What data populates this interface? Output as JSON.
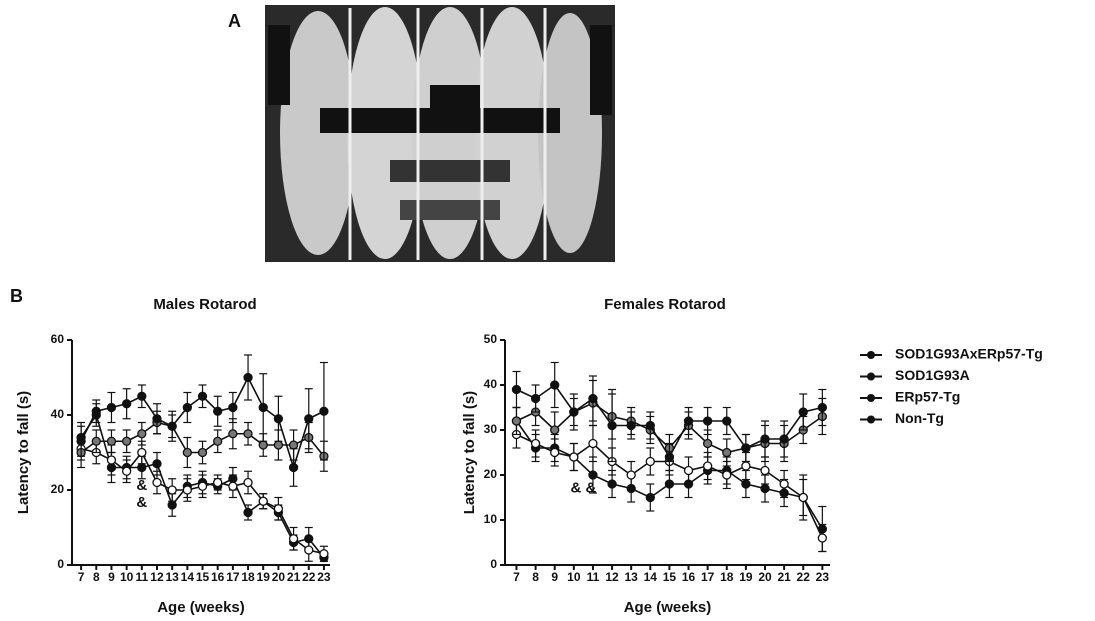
{
  "panel_labels": [
    "A",
    "B"
  ],
  "chart_data": [
    {
      "type": "line",
      "title": "Males Rotarod",
      "xlabel": "Age (weeks)",
      "ylabel": "Latency to fall (s)",
      "x": [
        7,
        8,
        9,
        10,
        11,
        12,
        13,
        14,
        15,
        16,
        17,
        18,
        19,
        20,
        21,
        22,
        23
      ],
      "xlim": [
        6.4,
        23.4
      ],
      "xticks": [
        7,
        8,
        9,
        10,
        11,
        12,
        13,
        14,
        15,
        16,
        17,
        18,
        19,
        20,
        21,
        22,
        23
      ],
      "ylim": [
        0,
        60
      ],
      "yticks": [
        0,
        20,
        40,
        60
      ],
      "annotations": [
        "&",
        "&"
      ],
      "series": [
        {
          "name": "SOD1G93AxERp57-Tg",
          "color": "#111111",
          "values": [
            34,
            40,
            26,
            26,
            26,
            27,
            16,
            21,
            22,
            21,
            23,
            14,
            17,
            14,
            6,
            7,
            2
          ],
          "errors": [
            4,
            3,
            4,
            3,
            3,
            3,
            3,
            3,
            3,
            2,
            3,
            2,
            2,
            2,
            2,
            3,
            1
          ]
        },
        {
          "name": "SOD1G93A",
          "color": "#111111",
          "values": [
            31,
            30,
            28,
            25,
            30,
            22,
            20,
            20,
            21,
            22,
            21,
            22,
            17,
            15,
            7,
            4,
            3
          ],
          "errors": [
            3,
            3,
            4,
            3,
            3,
            3,
            3,
            3,
            3,
            2,
            3,
            3,
            2,
            3,
            3,
            3,
            2
          ]
        },
        {
          "name": "ERp57-Tg",
          "color": "#111111",
          "values": [
            30,
            33,
            33,
            33,
            35,
            38,
            37,
            30,
            30,
            33,
            35,
            35,
            32,
            32,
            32,
            34,
            29
          ],
          "errors": [
            4,
            3,
            3,
            3,
            3,
            3,
            3,
            4,
            3,
            3,
            4,
            3,
            3,
            4,
            4,
            4,
            4
          ]
        },
        {
          "name": "Non-Tg",
          "color": "#111111",
          "values": [
            33,
            41,
            42,
            43,
            45,
            39,
            37,
            42,
            45,
            41,
            42,
            50,
            42,
            39,
            26,
            39,
            41
          ],
          "errors": [
            4,
            3,
            4,
            4,
            3,
            4,
            4,
            4,
            3,
            4,
            4,
            6,
            9,
            6,
            5,
            8,
            13
          ]
        }
      ]
    },
    {
      "type": "line",
      "title": "Females Rotarod",
      "xlabel": "Age (weeks)",
      "ylabel": "Latency to fall (s)",
      "x": [
        7,
        8,
        9,
        10,
        11,
        12,
        13,
        14,
        15,
        16,
        17,
        18,
        19,
        20,
        21,
        22,
        23
      ],
      "xlim": [
        6.4,
        23.4
      ],
      "xticks": [
        7,
        8,
        9,
        10,
        11,
        12,
        13,
        14,
        15,
        16,
        17,
        18,
        19,
        20,
        21,
        22,
        23
      ],
      "ylim": [
        0,
        50
      ],
      "yticks": [
        0,
        10,
        20,
        30,
        40,
        50
      ],
      "annotations": [
        "& &"
      ],
      "legend": "right",
      "series": [
        {
          "name": "SOD1G93AxERp57-Tg",
          "color": "#111111",
          "values": [
            32,
            26,
            26,
            24,
            20,
            18,
            17,
            15,
            18,
            18,
            21,
            21,
            18,
            17,
            16,
            15,
            8
          ],
          "errors": [
            3,
            3,
            3,
            3,
            4,
            3,
            3,
            3,
            3,
            3,
            3,
            3,
            3,
            3,
            3,
            5,
            5
          ]
        },
        {
          "name": "SOD1G93A",
          "color": "#111111",
          "values": [
            29,
            27,
            25,
            24,
            27,
            23,
            20,
            23,
            23,
            21,
            22,
            20,
            22,
            21,
            18,
            15,
            6
          ],
          "errors": [
            3,
            3,
            3,
            3,
            4,
            3,
            3,
            3,
            3,
            3,
            3,
            3,
            3,
            3,
            3,
            4,
            3
          ]
        },
        {
          "name": "ERp57-Tg",
          "color": "#111111",
          "values": [
            32,
            34,
            30,
            34,
            36,
            33,
            32,
            30,
            26,
            31,
            27,
            25,
            26,
            27,
            27,
            30,
            33
          ],
          "errors": [
            3,
            3,
            4,
            3,
            5,
            5,
            3,
            3,
            3,
            3,
            3,
            3,
            3,
            4,
            4,
            3,
            4
          ]
        },
        {
          "name": "Non-Tg",
          "color": "#111111",
          "values": [
            39,
            37,
            40,
            34,
            37,
            31,
            31,
            31,
            24,
            32,
            32,
            32,
            26,
            28,
            28,
            34,
            35
          ],
          "errors": [
            4,
            3,
            5,
            4,
            5,
            8,
            3,
            3,
            3,
            3,
            3,
            3,
            3,
            4,
            4,
            4,
            4
          ]
        }
      ]
    }
  ]
}
